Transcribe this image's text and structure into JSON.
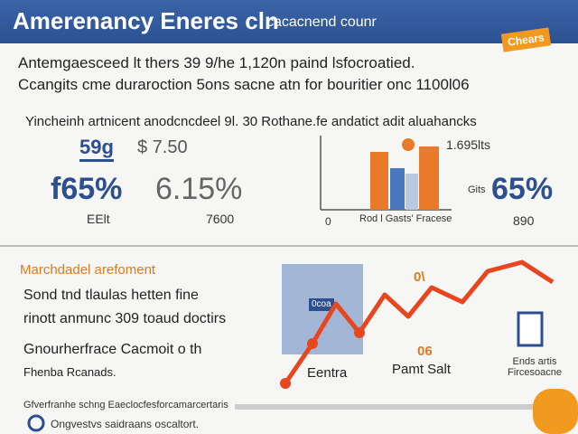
{
  "header": {
    "title": "Amerenancy Eneres cln",
    "subtitle": "cacacnend counr",
    "badge": "Chears"
  },
  "intro": {
    "line1": "Antemgaesceed lt thers 39 9/he 1,120n paind lsfocroatied.",
    "line2": "Ccangits cme duraroction 5ons sacne atn for bouritier onc 1100l06"
  },
  "stats": {
    "heading": "Yincheinh artnicent anodcncdeel 9l. 30 Rothane.fe andatict adit aluahancks",
    "box": "59g",
    "price": "$ 7.50",
    "left_pct": "f65%",
    "mid_pct": "6.15%",
    "left_caption": "EElt",
    "mid_caption": "7600",
    "chart_label": "1.695lts",
    "chart_zero": "0",
    "chart_caption": "Rod l Gasts' Fracese",
    "right_small": "Gits",
    "right_pct": "65%",
    "right_caption": "890"
  },
  "section": {
    "heading": "Marchdadel arefoment",
    "line1": "Sond tnd tlaulas hetten fine",
    "line2": "rinott anmunc 309 toaud doctirs",
    "line3": "Gnourherfrace Cacmoit o th",
    "line4": "Fhenba Rcanads.",
    "box_label": "0coa",
    "peak_label": "0\\",
    "mid_label": "06",
    "left_caption": "Eentra",
    "right_caption": "Pamt Salt",
    "side_caption": "Ends artis Fircesoacne"
  },
  "footer": {
    "line1": "Gfverfranhe schng Eaeclocfesforcamarcertaris",
    "line2": "Ongvestvs saidraans oscaltort."
  }
}
